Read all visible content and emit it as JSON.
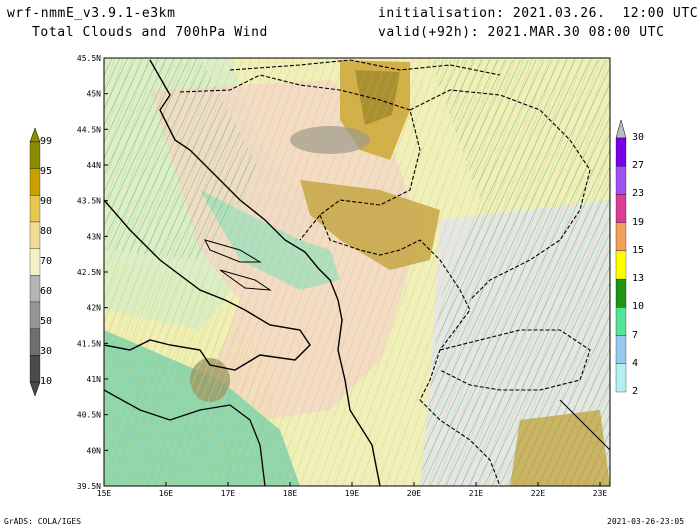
{
  "header": {
    "model": "wrf-nmmE_v3.9.1-e3km",
    "product": "Total Clouds and 700hPa Wind",
    "init": "initialisation: 2021.03.26.  12:00 UTC",
    "valid": "valid(+92h): 2021.MAR.30 08:00 UTC"
  },
  "footer": {
    "left": "GrADS: COLA/IGES",
    "right": "2021-03-26-23:05"
  },
  "map": {
    "lat_labels": [
      "45.5N",
      "45N",
      "44.5N",
      "44N",
      "43.5N",
      "43N",
      "42.5N",
      "42N",
      "41.5N",
      "41N",
      "40.5N",
      "40N",
      "39.5N"
    ],
    "lon_labels": [
      "15E",
      "16E",
      "17E",
      "18E",
      "19E",
      "20E",
      "21E",
      "22E",
      "23E"
    ]
  },
  "cloud_colorbar": {
    "labels": [
      "99",
      "95",
      "90",
      "80",
      "70",
      "60",
      "50",
      "30",
      "10"
    ],
    "colors": [
      "#8c8c00",
      "#c8a000",
      "#e6c850",
      "#f0dc96",
      "#f5f0c8",
      "#b4b4b4",
      "#969696",
      "#6e6e6e",
      "#4a4a4a"
    ]
  },
  "wind_colorbar": {
    "labels": [
      "30",
      "27",
      "23",
      "19",
      "15",
      "13",
      "10",
      "7",
      "4",
      "2"
    ],
    "colors": [
      "#7800e6",
      "#a050f0",
      "#dc3c96",
      "#f5a05a",
      "#ffff00",
      "#1e9614",
      "#50e696",
      "#96c8f0",
      "#b4f0f0"
    ]
  },
  "colors": {
    "sea": "#eef0b8",
    "land": "#f4ead0",
    "cloud_low": "#8fd9b4",
    "cloud_mid": "#e8c870",
    "cloud_high": "#b8a040",
    "border": "#000000"
  }
}
